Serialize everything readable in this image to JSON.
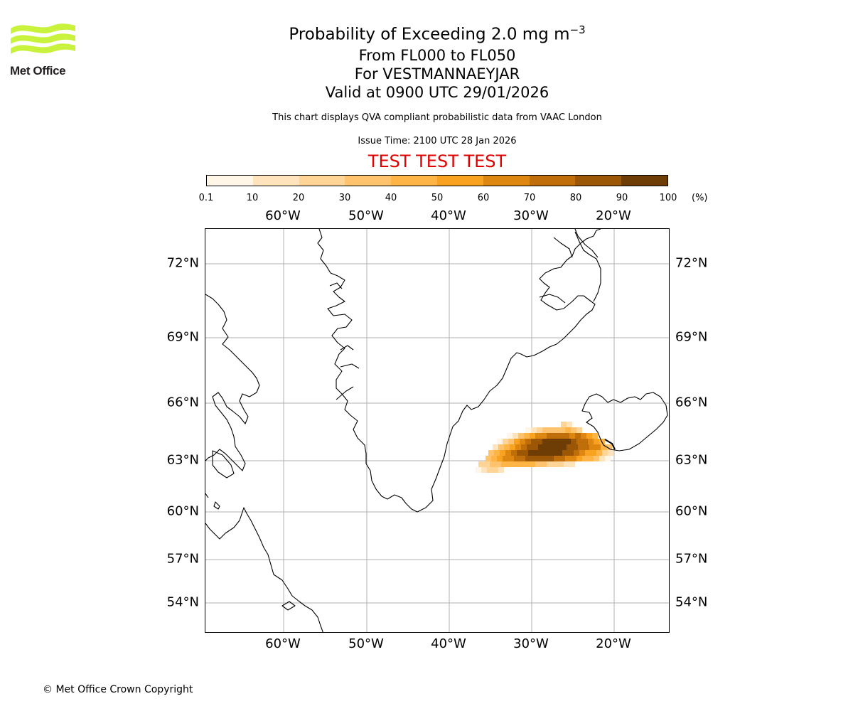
{
  "logo": {
    "text": "Met Office",
    "colors": {
      "waves": "#c8f23c",
      "text": "#231f20"
    }
  },
  "title": {
    "line1_prefix": "Probability of Exceeding 2.0 mg m",
    "line1_superscript": "−3",
    "line2": "From FL000 to FL050",
    "line3": "For VESTMANNAEYJAR",
    "line4": "Valid at 0900 UTC 29/01/2026"
  },
  "notes": {
    "compliance": "This chart displays QVA compliant probabilistic data from VAAC London",
    "issue_time": "Issue Time: 2100 UTC 28 Jan 2026"
  },
  "test_banner": {
    "text": "TEST TEST TEST",
    "color": "#e00000"
  },
  "colorbar": {
    "ticks": [
      "0.1",
      "10",
      "20",
      "30",
      "40",
      "50",
      "60",
      "70",
      "80",
      "90",
      "100"
    ],
    "unit": "(%)",
    "colors": [
      "#fff6e8",
      "#ffe3bd",
      "#ffd497",
      "#ffc26d",
      "#ffb545",
      "#f9a21f",
      "#dd8710",
      "#bf6e0a",
      "#9b5706",
      "#6e3c05"
    ]
  },
  "map": {
    "longitude_labels": [
      "60°W",
      "50°W",
      "40°W",
      "30°W",
      "20°W"
    ],
    "latitude_labels": [
      "72°N",
      "69°N",
      "66°N",
      "63°N",
      "60°N",
      "57°N",
      "54°N"
    ],
    "gridline_color": "#b0b0b0",
    "coastline_color": "#000000",
    "volcano_marker_icon": "volcano-marker-icon"
  },
  "footer": {
    "copyright": "© Met Office Crown Copyright"
  }
}
